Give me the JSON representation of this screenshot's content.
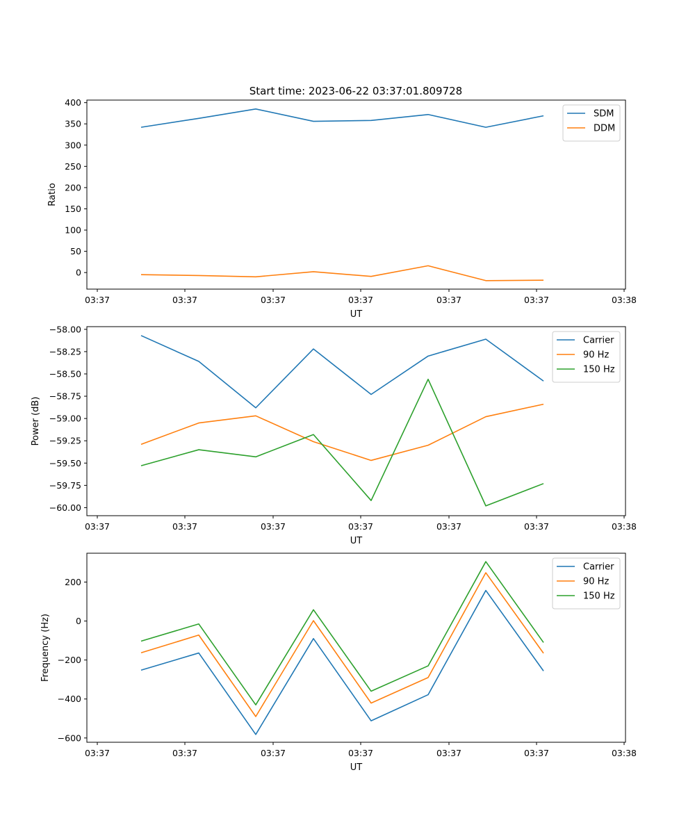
{
  "figure": {
    "title": "Start time: 2023-06-22 03:37:01.809728"
  },
  "chart_data": [
    {
      "type": "line",
      "xlabel": "UT",
      "ylabel": "Ratio",
      "x_tick_labels": [
        "03:37",
        "03:37",
        "03:37",
        "03:37",
        "03:37",
        "03:37",
        "03:38"
      ],
      "y_ticks": [
        0,
        50,
        100,
        150,
        200,
        250,
        300,
        350,
        400
      ],
      "ylim": [
        -39,
        406
      ],
      "legend_position": "top-right",
      "grid": false,
      "series": [
        {
          "name": "SDM",
          "color": "#1f77b4",
          "values": [
            342,
            363,
            385,
            356,
            358,
            372,
            342,
            369
          ]
        },
        {
          "name": "DDM",
          "color": "#ff7f0e",
          "values": [
            -5,
            -7,
            -10,
            2,
            -9,
            16,
            -19,
            -18
          ]
        }
      ]
    },
    {
      "type": "line",
      "xlabel": "UT",
      "ylabel": "Power (dB)",
      "x_tick_labels": [
        "03:37",
        "03:37",
        "03:37",
        "03:37",
        "03:37",
        "03:37",
        "03:38"
      ],
      "y_ticks": [
        -60.0,
        -59.75,
        -59.5,
        -59.25,
        -59.0,
        -58.75,
        -58.5,
        -58.25,
        -58.0
      ],
      "y_tick_labels": [
        "−60.00",
        "−59.75",
        "−59.50",
        "−59.25",
        "−59.00",
        "−58.75",
        "−58.50",
        "−58.25",
        "−58.00"
      ],
      "ylim": [
        -60.09,
        -57.97
      ],
      "legend_position": "top-right",
      "grid": false,
      "series": [
        {
          "name": "Carrier",
          "color": "#1f77b4",
          "values": [
            -58.07,
            -58.36,
            -58.88,
            -58.22,
            -58.73,
            -58.3,
            -58.11,
            -58.58
          ]
        },
        {
          "name": "90 Hz",
          "color": "#ff7f0e",
          "values": [
            -59.29,
            -59.05,
            -58.97,
            -59.26,
            -59.47,
            -59.3,
            -58.98,
            -58.84
          ]
        },
        {
          "name": "150 Hz",
          "color": "#2ca02c",
          "values": [
            -59.53,
            -59.35,
            -59.43,
            -59.18,
            -59.92,
            -58.56,
            -59.98,
            -59.73
          ]
        }
      ]
    },
    {
      "type": "line",
      "xlabel": "UT",
      "ylabel": "Frequency (Hz)",
      "x_tick_labels": [
        "03:37",
        "03:37",
        "03:37",
        "03:37",
        "03:37",
        "03:37",
        "03:38"
      ],
      "y_ticks": [
        -600,
        -400,
        -200,
        0,
        200
      ],
      "y_tick_labels": [
        "−600",
        "−400",
        "−200",
        "0",
        "200"
      ],
      "ylim": [
        -622,
        348
      ],
      "legend_position": "top-right",
      "grid": false,
      "series": [
        {
          "name": "Carrier",
          "color": "#1f77b4",
          "values": [
            -252,
            -164,
            -582,
            -90,
            -512,
            -378,
            157,
            -256
          ]
        },
        {
          "name": "90 Hz",
          "color": "#ff7f0e",
          "values": [
            -163,
            -72,
            -490,
            2,
            -421,
            -290,
            248,
            -165
          ]
        },
        {
          "name": "150 Hz",
          "color": "#2ca02c",
          "values": [
            -103,
            -15,
            -430,
            58,
            -360,
            -230,
            305,
            -110
          ]
        }
      ]
    }
  ]
}
